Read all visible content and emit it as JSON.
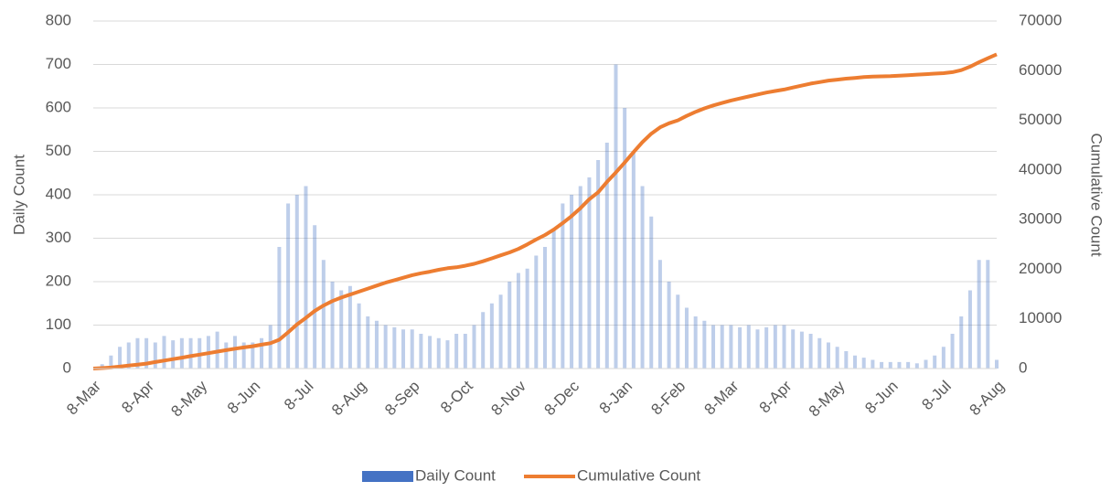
{
  "chart_data": {
    "type": "bar-line",
    "categories": [
      "8-Mar",
      null,
      null,
      null,
      null,
      null,
      "8-Apr",
      null,
      null,
      null,
      null,
      null,
      "8-May",
      null,
      null,
      null,
      null,
      null,
      "8-Jun",
      null,
      null,
      null,
      null,
      null,
      "8-Jul",
      null,
      null,
      null,
      null,
      null,
      "8-Aug",
      null,
      null,
      null,
      null,
      null,
      "8-Sep",
      null,
      null,
      null,
      null,
      null,
      "8-Oct",
      null,
      null,
      null,
      null,
      null,
      "8-Nov",
      null,
      null,
      null,
      null,
      null,
      "8-Dec",
      null,
      null,
      null,
      null,
      null,
      "8-Jan",
      null,
      null,
      null,
      null,
      null,
      "8-Feb",
      null,
      null,
      null,
      null,
      null,
      "8-Mar",
      null,
      null,
      null,
      null,
      null,
      "8-Apr",
      null,
      null,
      null,
      null,
      null,
      "8-May",
      null,
      null,
      null,
      null,
      null,
      "8-Jun",
      null,
      null,
      null,
      null,
      null,
      "8-Jul",
      null,
      null,
      null,
      null,
      null,
      "8-Aug"
    ],
    "series": [
      {
        "name": "Daily Count",
        "color": "#4472c4",
        "kind": "bar",
        "values": [
          0,
          10,
          30,
          50,
          60,
          70,
          70,
          60,
          75,
          65,
          70,
          70,
          70,
          75,
          85,
          60,
          75,
          60,
          60,
          70,
          100,
          280,
          380,
          400,
          420,
          330,
          250,
          200,
          180,
          190,
          150,
          120,
          110,
          100,
          95,
          90,
          90,
          80,
          75,
          70,
          65,
          80,
          80,
          100,
          130,
          150,
          170,
          200,
          220,
          230,
          260,
          280,
          320,
          380,
          400,
          420,
          440,
          480,
          520,
          700,
          600,
          500,
          420,
          350,
          250,
          200,
          170,
          140,
          120,
          110,
          100,
          100,
          100,
          95,
          100,
          90,
          95,
          100,
          100,
          90,
          85,
          80,
          70,
          60,
          50,
          40,
          30,
          25,
          20,
          15,
          15,
          15,
          15,
          12,
          20,
          30,
          50,
          80,
          120,
          180,
          250,
          250,
          20
        ]
      },
      {
        "name": "Cumulative Count",
        "color": "#ed7d31",
        "kind": "line",
        "axis": "y2",
        "values": [
          0,
          100,
          200,
          400,
          600,
          800,
          1000,
          1300,
          1600,
          1900,
          2200,
          2500,
          2800,
          3100,
          3400,
          3700,
          4000,
          4250,
          4500,
          4800,
          5100,
          5800,
          7300,
          8900,
          10200,
          11600,
          12700,
          13600,
          14300,
          14900,
          15500,
          16100,
          16700,
          17300,
          17800,
          18300,
          18800,
          19200,
          19500,
          19900,
          20200,
          20400,
          20700,
          21100,
          21600,
          22200,
          22800,
          23400,
          24100,
          25000,
          26000,
          26900,
          28000,
          29300,
          30700,
          32300,
          34100,
          35500,
          37600,
          39500,
          41500,
          43600,
          45600,
          47300,
          48600,
          49400,
          50000,
          50900,
          51700,
          52400,
          53000,
          53500,
          54000,
          54400,
          54800,
          55200,
          55600,
          55900,
          56200,
          56600,
          57000,
          57400,
          57700,
          58000,
          58200,
          58400,
          58550,
          58700,
          58800,
          58850,
          58900,
          59000,
          59100,
          59200,
          59300,
          59400,
          59500,
          59700,
          60100,
          60800,
          61700,
          62500,
          63300
        ]
      }
    ],
    "y_label": "Daily Count",
    "y2_label": "Cumulative Count",
    "ylim": [
      0,
      800
    ],
    "yticks": [
      0,
      100,
      200,
      300,
      400,
      500,
      600,
      700,
      800
    ],
    "y2lim": [
      0,
      70000
    ],
    "y2ticks": [
      0,
      10000,
      20000,
      30000,
      40000,
      50000,
      60000,
      70000
    ],
    "grid": true,
    "legend": "bottom"
  }
}
